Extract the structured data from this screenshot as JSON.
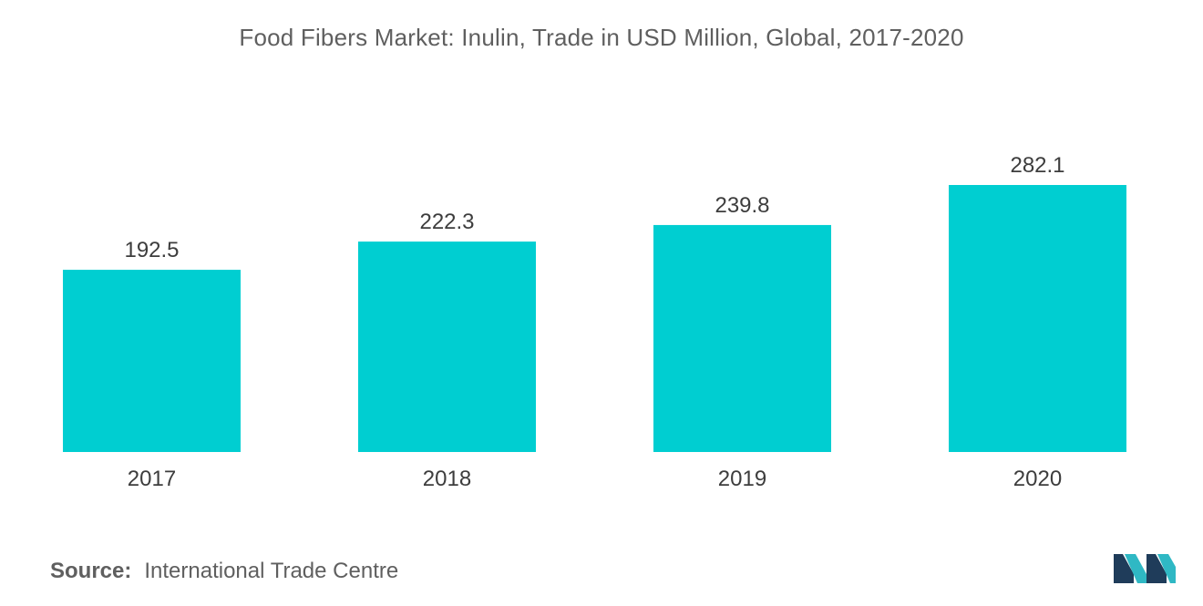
{
  "chart_data": {
    "type": "bar",
    "title": "Food Fibers Market: Inulin, Trade in USD Million, Global, 2017-2020",
    "categories": [
      "2017",
      "2018",
      "2019",
      "2020"
    ],
    "values": [
      192.5,
      222.3,
      239.8,
      282.1
    ],
    "value_labels": [
      "192.5",
      "222.3",
      "239.8",
      "282.1"
    ],
    "xlabel": "",
    "ylabel": "",
    "ylim": [
      0,
      282.1
    ],
    "grid": false,
    "legend": "none",
    "bar_color": "#00CED1"
  },
  "source": {
    "label": "Source:",
    "text": "International Trade Centre"
  },
  "logo": {
    "icon": "mordor-intelligence-logo-icon",
    "colors": [
      "#1f3c5a",
      "#2fb8c4"
    ]
  }
}
